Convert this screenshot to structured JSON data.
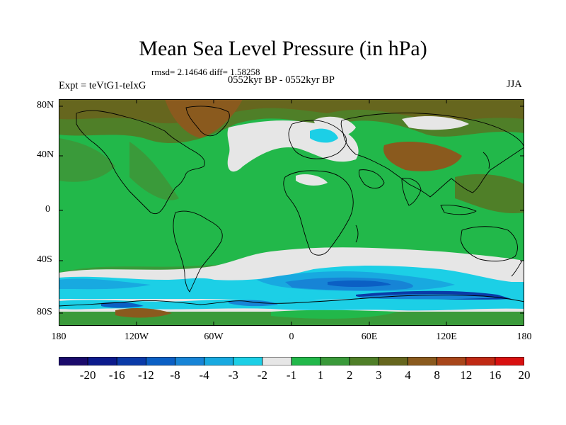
{
  "title": "Mean Sea Level Pressure (in hPa)",
  "stats": "rmsd= 2.14646  diff= 1.58258",
  "period": "0552kyr BP - 0552kyr BP",
  "experiment": "Expt = teVtG1-teIxG",
  "season": "JJA",
  "lat_labels": [
    "80N",
    "40N",
    "0",
    "40S",
    "80S"
  ],
  "lon_labels": [
    "180",
    "120W",
    "60W",
    "0",
    "60E",
    "120E",
    "180"
  ],
  "colorbar": {
    "labels": [
      "-20",
      "-16",
      "-12",
      "-8",
      "-4",
      "-3",
      "-2",
      "-1",
      "1",
      "2",
      "3",
      "4",
      "8",
      "12",
      "16",
      "20"
    ],
    "colors": [
      "#1a0a6b",
      "#0c1a8c",
      "#0a3aa8",
      "#0b5fc4",
      "#1784d6",
      "#18a9e0",
      "#1ccfe6",
      "#e6e6e6",
      "#22b84a",
      "#3a9a3a",
      "#4f7f28",
      "#66661e",
      "#8a5a1e",
      "#a8461a",
      "#c02a14",
      "#d81010"
    ]
  },
  "palette": {
    "land_green": "#22b84a",
    "mid_green": "#3a9a3a",
    "olive": "#4f7f28",
    "dark_olive": "#66661e",
    "brown": "#8a5a1e",
    "white": "#e6e6e6",
    "cyan": "#1ccfe6",
    "sky": "#18a9e0",
    "blue": "#1784d6",
    "deep_blue": "#0b5fc4",
    "navy": "#0a3aa8"
  }
}
